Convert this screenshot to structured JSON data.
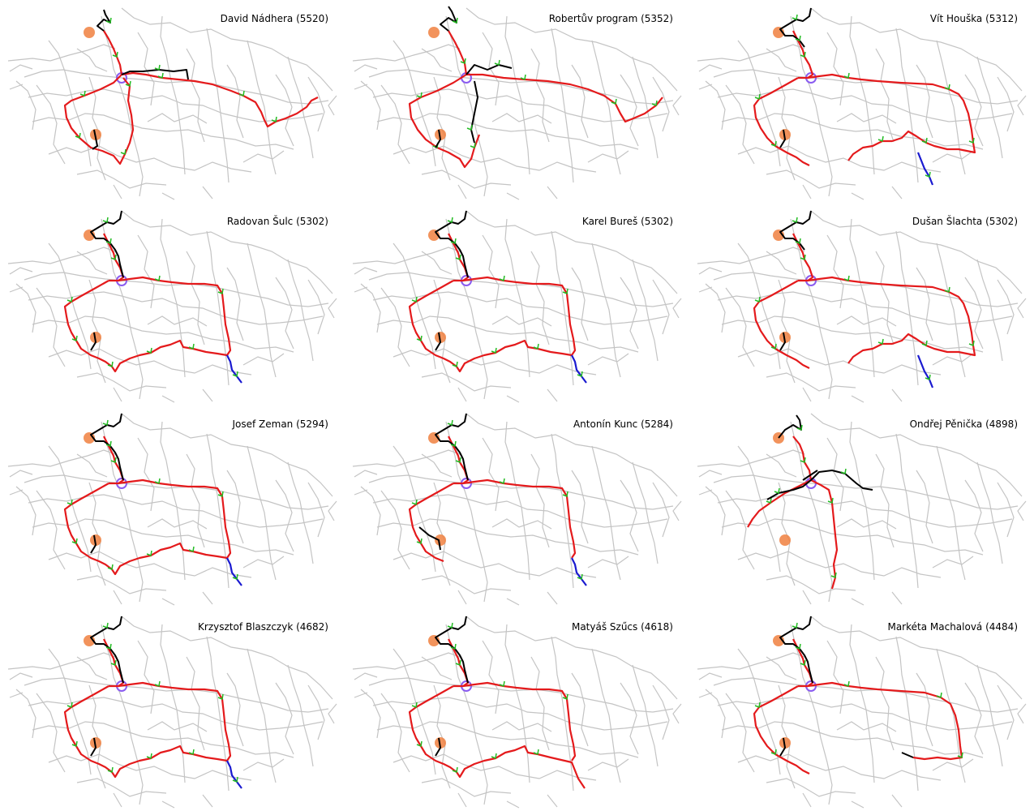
{
  "colors": {
    "network": "#c4c4c4",
    "route": "#e41a1c",
    "extra": "#000000",
    "tail": "#1a1ad0",
    "tick": "#22bb22",
    "city": "#f08040",
    "hub": "#8a5cf0"
  },
  "panels": [
    {
      "title": "David Nádhera (5520)",
      "variant": "A"
    },
    {
      "title": "Robertův program (5352)",
      "variant": "B"
    },
    {
      "title": "Vít Houška (5312)",
      "variant": "C"
    },
    {
      "title": "Radovan Šulc (5302)",
      "variant": "D"
    },
    {
      "title": "Karel Bureš (5302)",
      "variant": "D"
    },
    {
      "title": "Dušan Šlachta (5302)",
      "variant": "C"
    },
    {
      "title": "Josef Zeman (5294)",
      "variant": "D"
    },
    {
      "title": "Antonín Kunc (5284)",
      "variant": "E"
    },
    {
      "title": "Ondřej Pěnička (4898)",
      "variant": "F"
    },
    {
      "title": "Krzysztof Blaszczyk (4682)",
      "variant": "D"
    },
    {
      "title": "Matyáš Szűcs (4618)",
      "variant": "G"
    },
    {
      "title": "Markéta Machalová (4484)",
      "variant": "H"
    }
  ]
}
